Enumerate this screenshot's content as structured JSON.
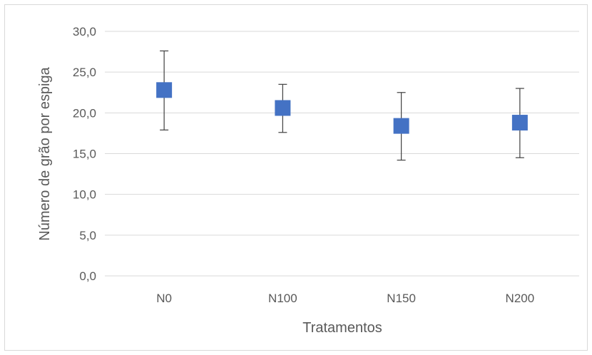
{
  "chart_data": {
    "type": "scatter",
    "title": "",
    "xlabel": "Tratamentos",
    "ylabel": "Número de grão por espiga",
    "categories": [
      "N0",
      "N100",
      "N150",
      "N200"
    ],
    "series": [
      {
        "values": [
          22.8,
          20.6,
          18.4,
          18.8
        ],
        "error_upper": [
          27.6,
          23.5,
          22.5,
          23.0
        ],
        "error_lower": [
          17.9,
          17.6,
          14.2,
          14.5
        ]
      }
    ],
    "ylim": [
      0,
      30
    ],
    "yticks": [
      "0,0",
      "5,0",
      "10,0",
      "15,0",
      "20,0",
      "25,0",
      "30,0"
    ],
    "ytick_values": [
      0,
      5,
      10,
      15,
      20,
      25,
      30
    ],
    "grid": true,
    "marker": "square",
    "colors": {
      "marker": "#4472C4",
      "error_bar": "#404040",
      "grid": "#d9d9d9",
      "text": "#595959"
    }
  }
}
